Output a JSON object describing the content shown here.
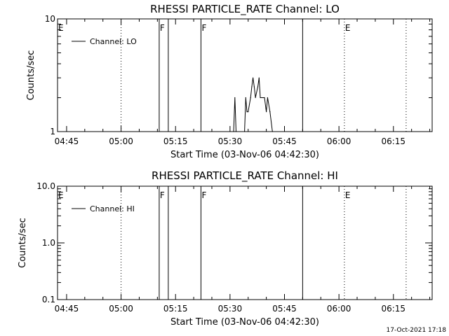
{
  "footer": {
    "timestamp": "17-Oct-2021 17:18"
  },
  "chart_data": [
    {
      "type": "line",
      "title": "RHESSI PARTICLE_RATE Channel: LO",
      "xlabel": "Start Time (03-Nov-06 04:42:30)",
      "ylabel": "Counts/sec",
      "yscale": "log",
      "xlim_minutes": [
        "04:42:30",
        "06:25:40"
      ],
      "ylim": [
        1,
        10
      ],
      "x_ticks": [
        "04:45",
        "05:00",
        "05:15",
        "05:30",
        "05:45",
        "06:00",
        "06:15"
      ],
      "y_ticks": [
        {
          "value": 1,
          "label": "1"
        },
        {
          "value": 10,
          "label": "10"
        }
      ],
      "legend": {
        "placement": "top-left",
        "entry": "Channel: LO"
      },
      "markers": [
        {
          "time": "04:42:30",
          "style": "solid",
          "label": "E"
        },
        {
          "time": "05:00:00",
          "style": "dotted",
          "label": ""
        },
        {
          "time": "05:10:30",
          "style": "solid",
          "label": "F"
        },
        {
          "time": "05:13:00",
          "style": "solid",
          "label": ""
        },
        {
          "time": "05:22:00",
          "style": "solid",
          "label": "F"
        },
        {
          "time": "05:50:00",
          "style": "solid",
          "label": ""
        },
        {
          "time": "06:01:30",
          "style": "dotted",
          "label": "E"
        },
        {
          "time": "06:18:30",
          "style": "dotted",
          "label": ""
        }
      ],
      "series": [
        {
          "name": "Channel: LO",
          "points": [
            [
              "05:31:00",
              1
            ],
            [
              "05:31:20",
              2
            ],
            [
              "05:31:40",
              1
            ],
            [
              "05:34:00",
              1
            ],
            [
              "05:34:20",
              2
            ],
            [
              "05:34:40",
              1.5
            ],
            [
              "05:35:00",
              1.5
            ],
            [
              "05:35:40",
              2
            ],
            [
              "05:36:00",
              2.5
            ],
            [
              "05:36:20",
              3
            ],
            [
              "05:36:40",
              2.5
            ],
            [
              "05:37:00",
              2
            ],
            [
              "05:37:40",
              2.5
            ],
            [
              "05:38:00",
              3
            ],
            [
              "05:38:20",
              2
            ],
            [
              "05:39:30",
              2
            ],
            [
              "05:40:00",
              1.5
            ],
            [
              "05:40:20",
              2
            ],
            [
              "05:41:00",
              1.5
            ],
            [
              "05:41:40",
              1
            ]
          ]
        }
      ]
    },
    {
      "type": "line",
      "title": "RHESSI PARTICLE_RATE Channel: HI",
      "xlabel": "Start Time (03-Nov-06 04:42:30)",
      "ylabel": "Counts/sec",
      "yscale": "log",
      "xlim_minutes": [
        "04:42:30",
        "06:25:40"
      ],
      "ylim": [
        0.1,
        10
      ],
      "x_ticks": [
        "04:45",
        "05:00",
        "05:15",
        "05:30",
        "05:45",
        "06:00",
        "06:15"
      ],
      "y_ticks": [
        {
          "value": 0.1,
          "label": "0.1"
        },
        {
          "value": 1,
          "label": "1.0"
        },
        {
          "value": 10,
          "label": "10.0"
        }
      ],
      "legend": {
        "placement": "top-left",
        "entry": "Channel: HI"
      },
      "markers": [
        {
          "time": "04:42:30",
          "style": "solid",
          "label": "E"
        },
        {
          "time": "05:00:00",
          "style": "dotted",
          "label": ""
        },
        {
          "time": "05:10:30",
          "style": "solid",
          "label": "F"
        },
        {
          "time": "05:13:00",
          "style": "solid",
          "label": ""
        },
        {
          "time": "05:22:00",
          "style": "solid",
          "label": "F"
        },
        {
          "time": "05:50:00",
          "style": "solid",
          "label": ""
        },
        {
          "time": "06:01:30",
          "style": "dotted",
          "label": "E"
        },
        {
          "time": "06:18:30",
          "style": "dotted",
          "label": ""
        }
      ],
      "series": [
        {
          "name": "Channel: HI",
          "points": []
        }
      ]
    }
  ]
}
